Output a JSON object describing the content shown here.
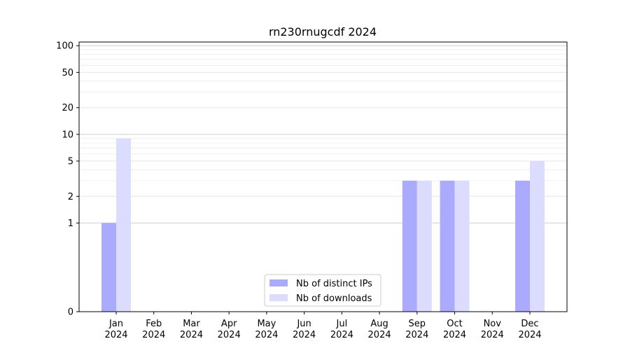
{
  "chart_data": {
    "type": "bar",
    "title": "rn230rnugcdf 2024",
    "xlabel": "",
    "ylabel": "",
    "y_scale": "symlog",
    "ylim": [
      0,
      110
    ],
    "y_ticks": [
      0,
      1,
      2,
      5,
      10,
      20,
      50,
      100
    ],
    "grid": "horizontal",
    "legend_position": "bottom-center",
    "categories": [
      {
        "month": "Jan",
        "year": "2024"
      },
      {
        "month": "Feb",
        "year": "2024"
      },
      {
        "month": "Mar",
        "year": "2024"
      },
      {
        "month": "Apr",
        "year": "2024"
      },
      {
        "month": "May",
        "year": "2024"
      },
      {
        "month": "Jun",
        "year": "2024"
      },
      {
        "month": "Jul",
        "year": "2024"
      },
      {
        "month": "Aug",
        "year": "2024"
      },
      {
        "month": "Sep",
        "year": "2024"
      },
      {
        "month": "Oct",
        "year": "2024"
      },
      {
        "month": "Nov",
        "year": "2024"
      },
      {
        "month": "Dec",
        "year": "2024"
      }
    ],
    "series": [
      {
        "name": "Nb of distinct IPs",
        "color": "#aaaaff",
        "values": [
          1,
          0,
          0,
          0,
          0,
          0,
          0,
          0,
          3,
          3,
          0,
          3
        ]
      },
      {
        "name": "Nb of downloads",
        "color": "#dcdcff",
        "values": [
          9,
          0,
          0,
          0,
          0,
          0,
          0,
          0,
          3,
          3,
          0,
          5
        ]
      }
    ]
  }
}
